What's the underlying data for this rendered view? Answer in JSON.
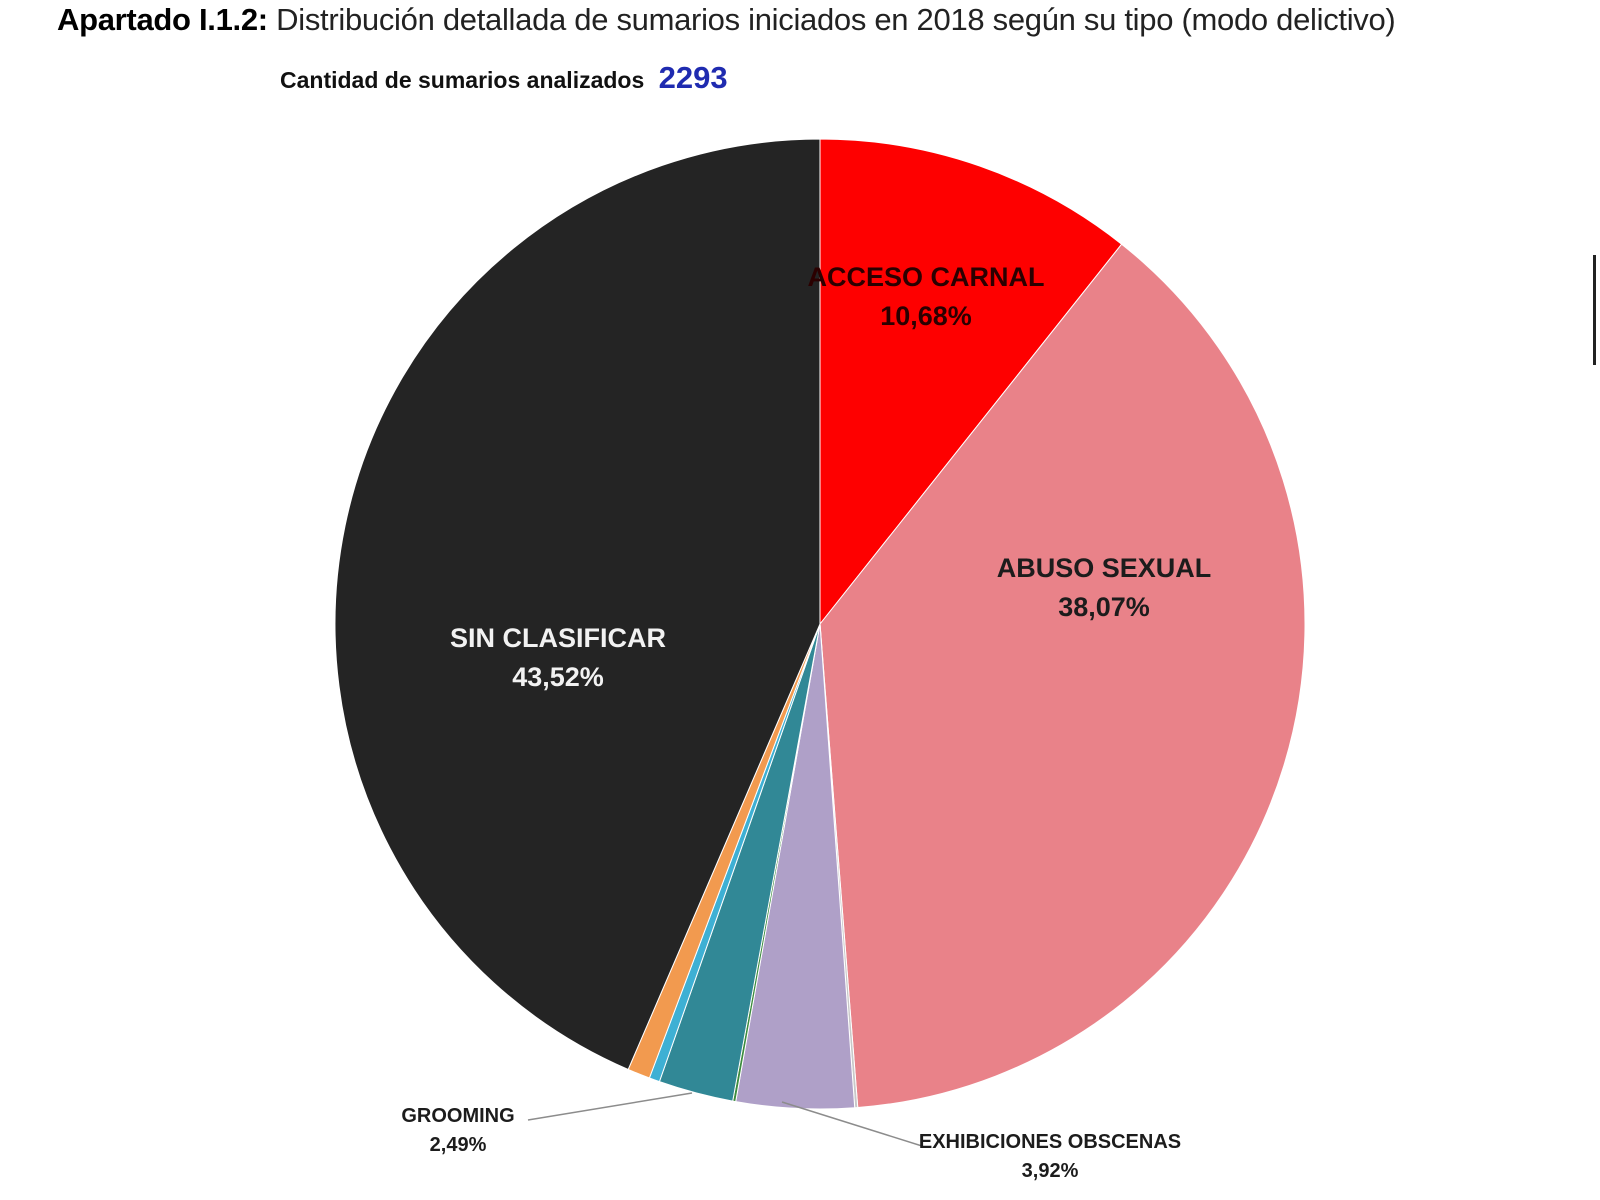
{
  "header": {
    "prefix": "Apartado I.1.2:",
    "title": "Distribución detallada de sumarios iniciados en 2018 según su tipo (modo delictivo)"
  },
  "subtitle": {
    "label": "Cantidad de sumarios analizados",
    "count": "2293"
  },
  "chart_data": {
    "type": "pie",
    "slices": [
      {
        "label": "ACCESO CARNAL",
        "pct_text": "10,68%",
        "value": 10.68,
        "color": "#fe0000",
        "label_color": "#2b0000"
      },
      {
        "label": "ABUSO SEXUAL",
        "pct_text": "38,07%",
        "value": 38.07,
        "color": "#e98289",
        "label_color": "#1c1c1c"
      },
      {
        "label": "",
        "pct_text": "",
        "value": 0.1,
        "color": "#c8c8c8",
        "label_color": "#000000"
      },
      {
        "label": "EXHIBICIONES OBSCENAS",
        "pct_text": "3,92%",
        "value": 3.92,
        "color": "#afa0c8",
        "label_color": "#1c1c1c"
      },
      {
        "label": "",
        "pct_text": "",
        "value": 0.1,
        "color": "#3d8c3f",
        "label_color": "#000000"
      },
      {
        "label": "GROOMING",
        "pct_text": "2,49%",
        "value": 2.49,
        "color": "#318896",
        "label_color": "#1c1c1c"
      },
      {
        "label": "",
        "pct_text": "",
        "value": 0.35,
        "color": "#3eb0d4",
        "label_color": "#000000"
      },
      {
        "label": "",
        "pct_text": "",
        "value": 0.75,
        "color": "#f29a4f",
        "label_color": "#000000"
      },
      {
        "label": "SIN CLASIFICAR",
        "pct_text": "43,52%",
        "value": 43.52,
        "color": "#242424",
        "label_color": "#f2f2f2"
      }
    ]
  }
}
